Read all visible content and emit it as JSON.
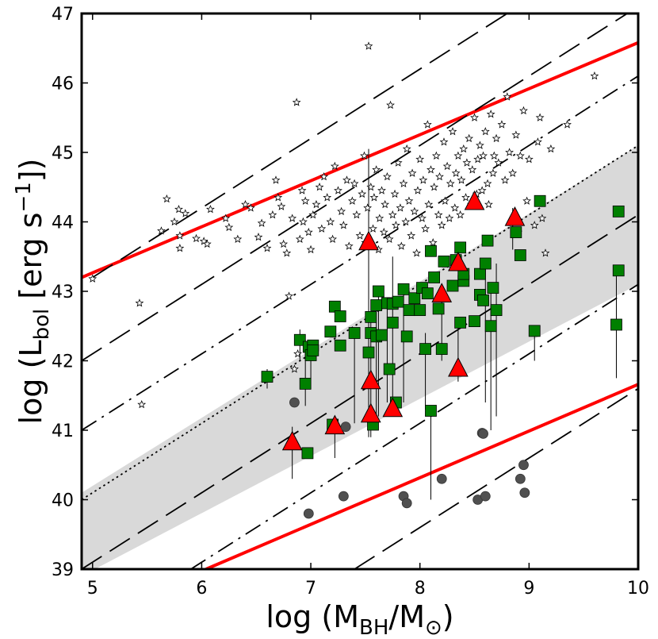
{
  "chart_data": {
    "type": "scatter",
    "title": "",
    "xlabel": {
      "main": "log (M",
      "sub1": "BH",
      "mid": "/M",
      "sub2": "⊙",
      "end": ")"
    },
    "ylabel": {
      "main": "log (L",
      "sub": "bol",
      "mid": " [erg s",
      "sup": "−1",
      "end": "])"
    },
    "xlim": [
      4.9,
      10.0
    ],
    "ylim": [
      39.0,
      47.0
    ],
    "xticks": [
      "5",
      "6",
      "7",
      "8",
      "9",
      "10"
    ],
    "yticks": [
      "39",
      "40",
      "41",
      "42",
      "43",
      "44",
      "45",
      "46",
      "47"
    ],
    "grid": false,
    "shaded_band": {
      "x": [
        4.9,
        10.0
      ],
      "lower": [
        38.9,
        43.1
      ],
      "upper": [
        40.1,
        45.1
      ],
      "color": "#d9d9d9"
    },
    "reference_lines": [
      {
        "style": "solid",
        "color": "#ff0000",
        "x": [
          4.9,
          10.0
        ],
        "y": [
          43.2,
          46.58
        ]
      },
      {
        "style": "solid",
        "color": "#ff0000",
        "x": [
          6.04,
          10.0
        ],
        "y": [
          39.0,
          41.66
        ]
      },
      {
        "style": "longdash",
        "color": "#000000",
        "x": [
          5.0,
          10.0
        ],
        "y": [
          43.2,
          48.2
        ]
      },
      {
        "style": "longdash",
        "color": "#000000",
        "x": [
          4.9,
          10.0
        ],
        "y": [
          42.0,
          47.1
        ]
      },
      {
        "style": "dashdot",
        "color": "#000000",
        "x": [
          4.9,
          10.0
        ],
        "y": [
          41.0,
          46.1
        ]
      },
      {
        "style": "dotted",
        "color": "#000000",
        "x": [
          4.9,
          10.0
        ],
        "y": [
          40.0,
          45.1
        ]
      },
      {
        "style": "longdash",
        "color": "#000000",
        "x": [
          4.9,
          10.0
        ],
        "y": [
          39.0,
          44.1
        ]
      },
      {
        "style": "dashdot",
        "color": "#000000",
        "x": [
          5.9,
          10.0
        ],
        "y": [
          39.0,
          43.1
        ]
      },
      {
        "style": "longdash",
        "color": "#000000",
        "x": [
          7.4,
          10.0
        ],
        "y": [
          39.0,
          41.6
        ]
      }
    ],
    "series": [
      {
        "marker": "star",
        "color": "#ffffff",
        "points": [
          [
            5.0,
            43.18
          ],
          [
            5.43,
            42.83
          ],
          [
            5.45,
            41.37
          ],
          [
            5.63,
            43.87
          ],
          [
            5.68,
            44.33
          ],
          [
            5.75,
            44.0
          ],
          [
            5.79,
            44.18
          ],
          [
            5.8,
            43.62
          ],
          [
            5.8,
            43.8
          ],
          [
            5.85,
            44.12
          ],
          [
            5.95,
            43.76
          ],
          [
            6.02,
            43.72
          ],
          [
            6.05,
            43.68
          ],
          [
            6.08,
            44.18
          ],
          [
            6.22,
            44.05
          ],
          [
            6.25,
            43.92
          ],
          [
            6.33,
            43.75
          ],
          [
            6.4,
            44.25
          ],
          [
            6.45,
            44.2
          ],
          [
            6.52,
            43.78
          ],
          [
            6.55,
            43.98
          ],
          [
            6.6,
            43.62
          ],
          [
            6.65,
            44.1
          ],
          [
            6.68,
            44.6
          ],
          [
            6.7,
            44.35
          ],
          [
            6.73,
            44.22
          ],
          [
            6.75,
            43.68
          ],
          [
            6.78,
            43.55
          ],
          [
            6.8,
            42.93
          ],
          [
            6.83,
            44.05
          ],
          [
            6.85,
            41.88
          ],
          [
            6.87,
            45.72
          ],
          [
            6.88,
            42.1
          ],
          [
            6.9,
            43.75
          ],
          [
            6.92,
            44.45
          ],
          [
            6.93,
            44.0
          ],
          [
            6.95,
            44.3
          ],
          [
            6.98,
            43.85
          ],
          [
            7.0,
            43.6
          ],
          [
            7.02,
            44.1
          ],
          [
            7.05,
            44.25
          ],
          [
            7.08,
            44.5
          ],
          [
            7.1,
            43.9
          ],
          [
            7.12,
            44.65
          ],
          [
            7.15,
            44.35
          ],
          [
            7.18,
            44.0
          ],
          [
            7.2,
            43.75
          ],
          [
            7.22,
            44.8
          ],
          [
            7.25,
            44.45
          ],
          [
            7.28,
            44.15
          ],
          [
            7.3,
            43.95
          ],
          [
            7.33,
            44.6
          ],
          [
            7.35,
            43.65
          ],
          [
            7.38,
            44.3
          ],
          [
            7.4,
            44.55
          ],
          [
            7.42,
            44.1
          ],
          [
            7.45,
            43.8
          ],
          [
            7.47,
            44.4
          ],
          [
            7.49,
            44.95
          ],
          [
            7.5,
            43.7
          ],
          [
            7.52,
            44.2
          ],
          [
            7.53,
            46.53
          ],
          [
            7.55,
            44.5
          ],
          [
            7.57,
            43.9
          ],
          [
            7.58,
            44.35
          ],
          [
            7.6,
            44.75
          ],
          [
            7.62,
            43.6
          ],
          [
            7.63,
            44.05
          ],
          [
            7.65,
            44.45
          ],
          [
            7.67,
            43.85
          ],
          [
            7.68,
            44.25
          ],
          [
            7.7,
            44.65
          ],
          [
            7.72,
            43.75
          ],
          [
            7.73,
            45.68
          ],
          [
            7.75,
            44.1
          ],
          [
            7.77,
            44.4
          ],
          [
            7.78,
            43.95
          ],
          [
            7.8,
            44.85
          ],
          [
            7.82,
            44.2
          ],
          [
            7.83,
            43.65
          ],
          [
            7.85,
            44.55
          ],
          [
            7.87,
            44.0
          ],
          [
            7.88,
            45.05
          ],
          [
            7.9,
            44.3
          ],
          [
            7.92,
            43.8
          ],
          [
            7.93,
            44.7
          ],
          [
            7.95,
            44.15
          ],
          [
            7.97,
            43.55
          ],
          [
            7.98,
            44.45
          ],
          [
            8.0,
            44.9
          ],
          [
            8.02,
            44.05
          ],
          [
            8.03,
            44.6
          ],
          [
            8.05,
            43.9
          ],
          [
            8.07,
            45.4
          ],
          [
            8.08,
            44.25
          ],
          [
            8.1,
            44.75
          ],
          [
            8.12,
            43.7
          ],
          [
            8.13,
            44.5
          ],
          [
            8.15,
            44.95
          ],
          [
            8.17,
            44.1
          ],
          [
            8.18,
            44.65
          ],
          [
            8.2,
            43.95
          ],
          [
            8.22,
            45.15
          ],
          [
            8.23,
            44.3
          ],
          [
            8.25,
            44.8
          ],
          [
            8.27,
            44.05
          ],
          [
            8.28,
            44.55
          ],
          [
            8.3,
            45.3
          ],
          [
            8.32,
            44.2
          ],
          [
            8.33,
            44.7
          ],
          [
            8.35,
            44.95
          ],
          [
            8.37,
            44.1
          ],
          [
            8.38,
            44.6
          ],
          [
            8.4,
            45.05
          ],
          [
            8.42,
            44.35
          ],
          [
            8.43,
            44.85
          ],
          [
            8.45,
            45.2
          ],
          [
            8.47,
            44.25
          ],
          [
            8.48,
            44.75
          ],
          [
            8.5,
            45.5
          ],
          [
            8.52,
            44.4
          ],
          [
            8.53,
            44.9
          ],
          [
            8.55,
            45.1
          ],
          [
            8.57,
            44.45
          ],
          [
            8.58,
            44.95
          ],
          [
            8.6,
            45.3
          ],
          [
            8.62,
            44.55
          ],
          [
            8.63,
            44.25
          ],
          [
            8.65,
            45.55
          ],
          [
            8.67,
            44.7
          ],
          [
            8.68,
            44.95
          ],
          [
            8.7,
            45.2
          ],
          [
            8.72,
            44.85
          ],
          [
            8.75,
            45.4
          ],
          [
            8.78,
            44.6
          ],
          [
            8.8,
            45.8
          ],
          [
            8.82,
            45.0
          ],
          [
            8.85,
            44.7
          ],
          [
            8.88,
            45.25
          ],
          [
            8.9,
            43.85
          ],
          [
            8.92,
            44.95
          ],
          [
            8.95,
            45.6
          ],
          [
            8.98,
            44.3
          ],
          [
            9.0,
            44.9
          ],
          [
            9.05,
            43.95
          ],
          [
            9.08,
            45.15
          ],
          [
            9.1,
            45.5
          ],
          [
            9.12,
            44.05
          ],
          [
            9.15,
            43.55
          ],
          [
            9.2,
            45.05
          ],
          [
            9.35,
            45.4
          ],
          [
            9.6,
            46.1
          ]
        ]
      },
      {
        "marker": "square",
        "color": "#008000",
        "points": [
          [
            6.6,
            41.77
          ],
          [
            6.9,
            42.3
          ],
          [
            6.95,
            41.67
          ],
          [
            6.97,
            40.67
          ],
          [
            6.98,
            42.2
          ],
          [
            7.0,
            42.08
          ],
          [
            7.02,
            42.22
          ],
          [
            7.02,
            42.15
          ],
          [
            7.18,
            42.42
          ],
          [
            7.2,
            41.08
          ],
          [
            7.22,
            42.78
          ],
          [
            7.27,
            42.64
          ],
          [
            7.27,
            42.22
          ],
          [
            7.4,
            42.4
          ],
          [
            7.53,
            42.12
          ],
          [
            7.55,
            42.63
          ],
          [
            7.55,
            42.4
          ],
          [
            7.57,
            41.08
          ],
          [
            7.6,
            42.8
          ],
          [
            7.6,
            42.35
          ],
          [
            7.62,
            43.0
          ],
          [
            7.65,
            42.37
          ],
          [
            7.7,
            42.83
          ],
          [
            7.72,
            41.88
          ],
          [
            7.75,
            42.55
          ],
          [
            7.75,
            42.82
          ],
          [
            7.78,
            41.4
          ],
          [
            7.8,
            42.85
          ],
          [
            7.85,
            43.03
          ],
          [
            7.88,
            42.35
          ],
          [
            7.9,
            42.73
          ],
          [
            7.95,
            42.9
          ],
          [
            8.0,
            42.73
          ],
          [
            8.02,
            43.05
          ],
          [
            8.05,
            42.17
          ],
          [
            8.07,
            42.97
          ],
          [
            8.1,
            41.28
          ],
          [
            8.1,
            43.58
          ],
          [
            8.13,
            43.2
          ],
          [
            8.17,
            42.75
          ],
          [
            8.2,
            42.17
          ],
          [
            8.22,
            43.43
          ],
          [
            8.3,
            43.08
          ],
          [
            8.33,
            43.45
          ],
          [
            8.37,
            42.55
          ],
          [
            8.37,
            43.63
          ],
          [
            8.4,
            43.15
          ],
          [
            8.4,
            43.25
          ],
          [
            8.5,
            42.57
          ],
          [
            8.55,
            43.25
          ],
          [
            8.55,
            42.95
          ],
          [
            8.58,
            42.87
          ],
          [
            8.6,
            43.4
          ],
          [
            8.62,
            43.73
          ],
          [
            8.65,
            42.5
          ],
          [
            8.67,
            43.05
          ],
          [
            8.7,
            42.73
          ],
          [
            8.88,
            43.85
          ],
          [
            8.92,
            43.52
          ],
          [
            9.05,
            42.43
          ],
          [
            9.1,
            44.3
          ],
          [
            9.8,
            42.52
          ],
          [
            9.82,
            43.3
          ],
          [
            9.82,
            44.15
          ]
        ]
      },
      {
        "marker": "triangle",
        "color": "#ff0000",
        "points": [
          [
            6.83,
            40.82
          ],
          [
            7.22,
            41.05
          ],
          [
            7.53,
            43.7
          ],
          [
            7.55,
            41.7
          ],
          [
            7.55,
            41.22
          ],
          [
            7.75,
            41.3
          ],
          [
            8.2,
            42.95
          ],
          [
            8.35,
            43.4
          ],
          [
            8.35,
            41.88
          ],
          [
            8.5,
            44.28
          ],
          [
            8.87,
            44.05
          ]
        ]
      },
      {
        "marker": "circle",
        "color": "#505050",
        "points": [
          [
            6.85,
            41.4
          ],
          [
            6.98,
            39.8
          ],
          [
            7.3,
            40.05
          ],
          [
            7.32,
            41.05
          ],
          [
            7.85,
            40.05
          ],
          [
            7.88,
            39.95
          ],
          [
            8.2,
            40.3
          ],
          [
            8.53,
            40.0
          ],
          [
            8.57,
            40.96
          ],
          [
            8.58,
            40.95
          ],
          [
            8.6,
            40.05
          ],
          [
            8.92,
            40.3
          ],
          [
            8.95,
            40.5
          ],
          [
            8.96,
            40.1
          ]
        ]
      }
    ],
    "error_bars": [
      {
        "x": 6.6,
        "y1": 41.6,
        "y2": 41.88
      },
      {
        "x": 6.83,
        "y1": 40.3,
        "y2": 41.05
      },
      {
        "x": 6.9,
        "y1": 42.0,
        "y2": 42.45
      },
      {
        "x": 6.95,
        "y1": 41.35,
        "y2": 42.3
      },
      {
        "x": 7.0,
        "y1": 41.75,
        "y2": 42.3
      },
      {
        "x": 7.22,
        "y1": 40.6,
        "y2": 41.2
      },
      {
        "x": 7.4,
        "y1": 41.1,
        "y2": 42.4
      },
      {
        "x": 7.53,
        "y1": 40.9,
        "y2": 45.05
      },
      {
        "x": 7.55,
        "y1": 40.9,
        "y2": 42.63
      },
      {
        "x": 7.6,
        "y1": 41.2,
        "y2": 42.8
      },
      {
        "x": 7.62,
        "y1": 41.2,
        "y2": 43.0
      },
      {
        "x": 7.7,
        "y1": 41.4,
        "y2": 42.83
      },
      {
        "x": 7.75,
        "y1": 41.2,
        "y2": 43.5
      },
      {
        "x": 7.85,
        "y1": 41.4,
        "y2": 43.03
      },
      {
        "x": 8.05,
        "y1": 41.3,
        "y2": 42.4
      },
      {
        "x": 8.1,
        "y1": 40.0,
        "y2": 41.28
      },
      {
        "x": 8.2,
        "y1": 42.0,
        "y2": 43.1
      },
      {
        "x": 8.35,
        "y1": 41.7,
        "y2": 42.6
      },
      {
        "x": 8.6,
        "y1": 41.4,
        "y2": 43.4
      },
      {
        "x": 8.65,
        "y1": 41.0,
        "y2": 43.0
      },
      {
        "x": 8.7,
        "y1": 41.2,
        "y2": 43.4
      },
      {
        "x": 8.85,
        "y1": 43.6,
        "y2": 44.2
      },
      {
        "x": 9.05,
        "y1": 42.0,
        "y2": 42.43
      },
      {
        "x": 9.8,
        "y1": 41.75,
        "y2": 43.3
      }
    ]
  }
}
